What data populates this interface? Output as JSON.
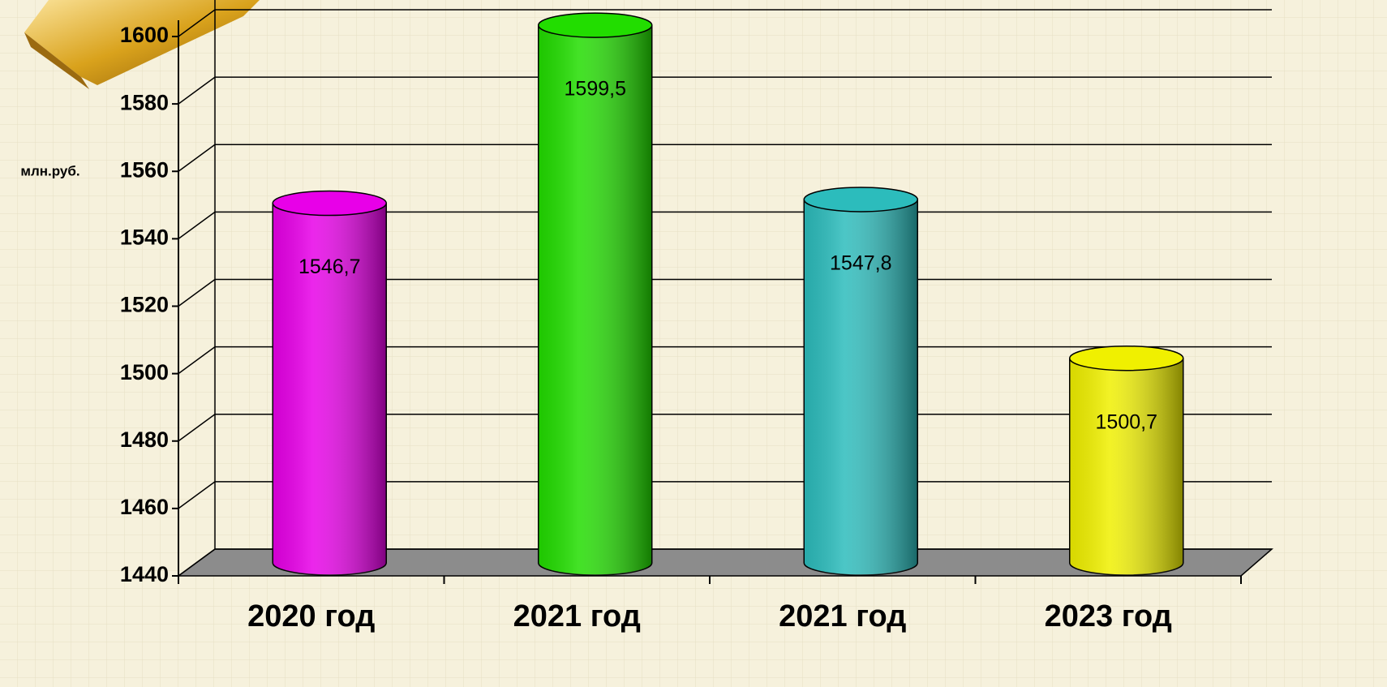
{
  "chart_data": {
    "type": "bar",
    "shape": "cylinder",
    "y_label": "млн.руб.",
    "categories": [
      "2020 год",
      "2021 год",
      "2021 год",
      "2023 год"
    ],
    "values": [
      1546.7,
      1599.5,
      1547.8,
      1500.7
    ],
    "value_labels": [
      "1546,7",
      "1599,5",
      "1547,8",
      "1500,7"
    ],
    "colors": [
      "#e800e8",
      "#22dd00",
      "#2cbcbc",
      "#f0f000"
    ],
    "ylim": [
      1440,
      1600
    ],
    "yticks": [
      1440,
      1460,
      1480,
      1500,
      1520,
      1540,
      1560,
      1580,
      1600
    ],
    "grid": true
  }
}
